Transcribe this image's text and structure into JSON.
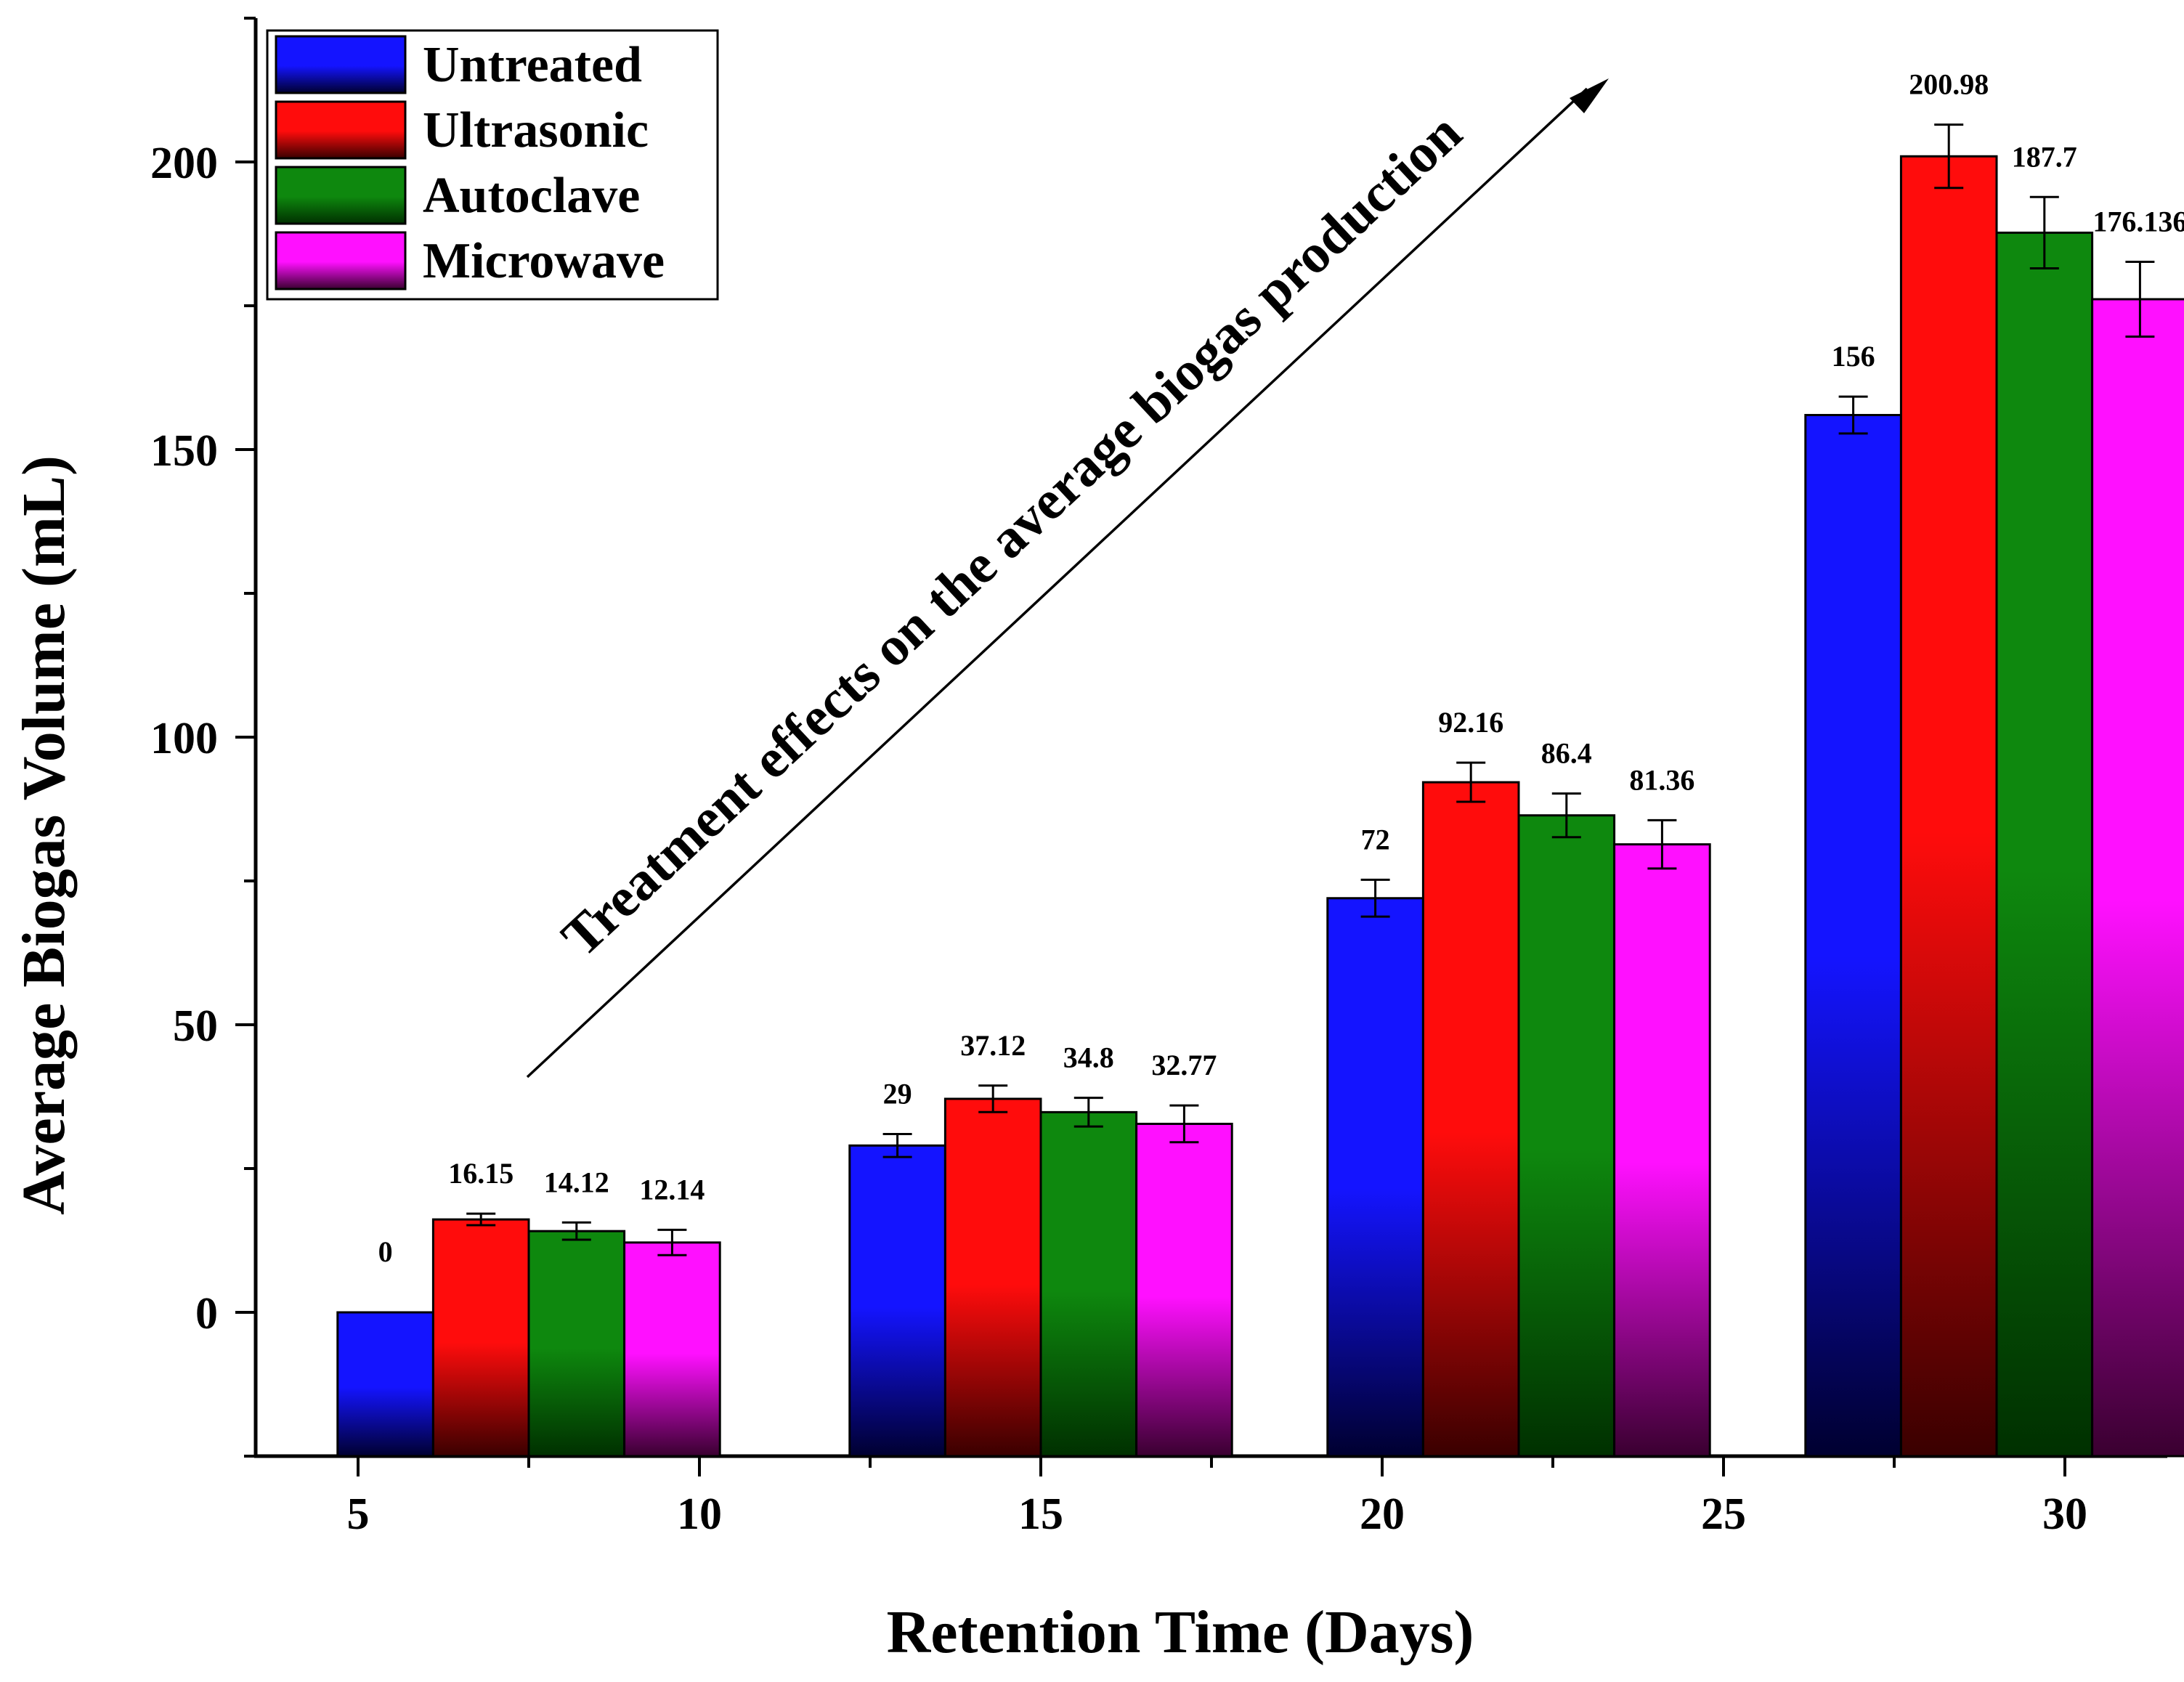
{
  "chart_data": {
    "type": "bar",
    "title": "",
    "xlabel": "Retention Time (Days)",
    "ylabel": "Average Biogas Volume (mL)",
    "x_ticks": [
      "5",
      "10",
      "15",
      "20",
      "25",
      "30"
    ],
    "x_tick_values": [
      5,
      10,
      15,
      20,
      25,
      30
    ],
    "y_ticks": [
      "0",
      "50",
      "100",
      "150",
      "200"
    ],
    "y_tick_values": [
      0,
      50,
      100,
      150,
      200
    ],
    "xlim": [
      3.5,
      31.5
    ],
    "ylim": [
      -25,
      225
    ],
    "grid": false,
    "legend_position": "top-left",
    "annotation": "Treatment effects on the average biogas production",
    "categories": [
      "5",
      "15",
      "20",
      "30"
    ],
    "category_x": [
      7.5,
      15.0,
      22.0,
      29.0
    ],
    "bar_width_days": 1.4,
    "series": [
      {
        "name": "Untreated",
        "color": "#1414ff",
        "dark": "#000030",
        "values": [
          0,
          29,
          72,
          156
        ],
        "labels": [
          "0",
          "29",
          "72",
          "156"
        ],
        "errors": [
          0,
          2.0,
          3.2,
          3.2
        ]
      },
      {
        "name": "Ultrasonic",
        "color": "#ff0c0c",
        "dark": "#3a0000",
        "values": [
          16.15,
          37.12,
          92.16,
          200.98
        ],
        "labels": [
          "16.15",
          "37.12",
          "92.16",
          "200.98"
        ],
        "errors": [
          1.0,
          2.3,
          3.4,
          5.5
        ]
      },
      {
        "name": "Autoclave",
        "color": "#0e880e",
        "dark": "#003000",
        "values": [
          14.12,
          34.8,
          86.4,
          187.7
        ],
        "labels": [
          "14.12",
          "34.8",
          "86.4",
          "187.7"
        ],
        "errors": [
          1.5,
          2.5,
          3.8,
          6.2
        ]
      },
      {
        "name": "Microwave",
        "color": "#ff10ff",
        "dark": "#3a0030",
        "values": [
          12.14,
          32.77,
          81.36,
          176.136
        ],
        "labels": [
          "12.14",
          "32.77",
          "81.36",
          "176.136"
        ],
        "errors": [
          2.2,
          3.2,
          4.2,
          6.5
        ]
      }
    ]
  }
}
